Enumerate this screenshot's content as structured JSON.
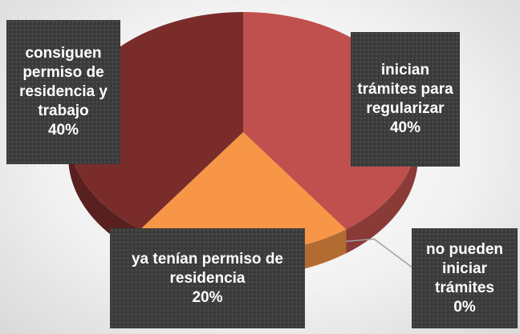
{
  "chart_data": {
    "type": "pie3d",
    "categories": [
      "inician trámites para regularizar",
      "no pueden iniciar trámites",
      "ya tenían permiso de residencia",
      "consiguen permiso de residencia y trabajo"
    ],
    "values": [
      40,
      0,
      20,
      40
    ],
    "value_labels": [
      "40%",
      "0%",
      "20%",
      "40%"
    ],
    "colors": [
      "#c0504d",
      "#9bbb59",
      "#f79646",
      "#7a2c2b"
    ]
  }
}
